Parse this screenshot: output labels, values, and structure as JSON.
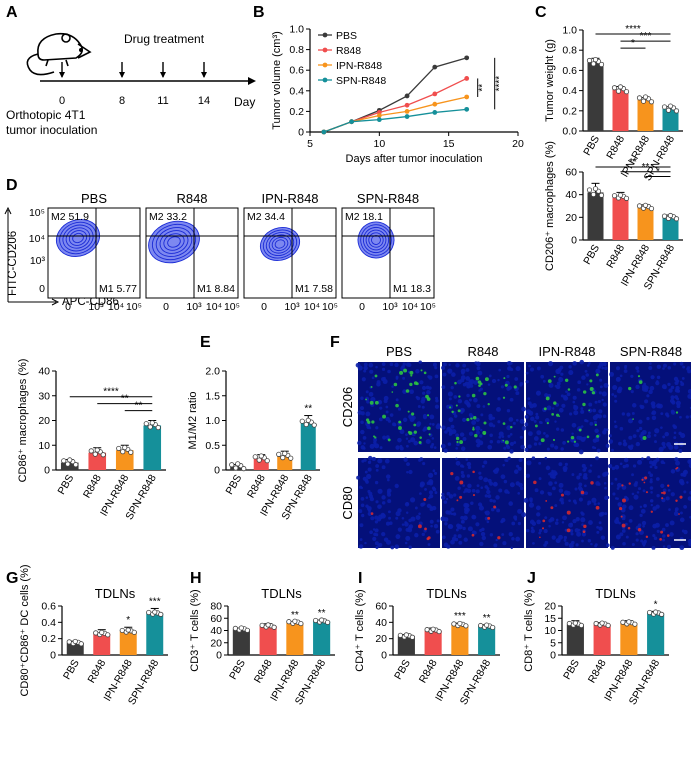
{
  "panel_letters": [
    "A",
    "B",
    "C",
    "D",
    "E",
    "F",
    "G",
    "H",
    "I",
    "J"
  ],
  "colors": {
    "PBS": "#3a3a3a",
    "R848": "#f04e4e",
    "IPN-R848": "#f7941d",
    "SPN-R848": "#15909a",
    "flow": "#1a2bd6",
    "cd206": "#2ecc40",
    "cd80": "#e02a2a",
    "nucleus": "#0b1fa8"
  },
  "timeline": {
    "drug_label": "Drug treatment",
    "axis_label": "Day",
    "ticks": [
      "0",
      "8",
      "11",
      "14"
    ],
    "inoculation_label_1": "Orthotopic 4T1",
    "inoculation_label_2": "tumor inoculation"
  },
  "flow": {
    "xlabel": "APC-CD86",
    "ylabel": "FITC-CD206",
    "x_ticks": [
      "0",
      "10³",
      "10⁴",
      "10⁵"
    ],
    "y_ticks": [
      "10⁵",
      "10⁴",
      "10³",
      "0"
    ],
    "plots": [
      {
        "title": "PBS",
        "m2": "M2 51.9",
        "m1": "M1 5.77"
      },
      {
        "title": "R848",
        "m2": "M2 33.2",
        "m1": "M1 8.84"
      },
      {
        "title": "IPN-R848",
        "m2": "M2 34.4",
        "m1": "M1 7.58"
      },
      {
        "title": "SPN-R848",
        "m2": "M2 18.1",
        "m1": "M1 18.3"
      }
    ]
  },
  "micro": {
    "cols": [
      "PBS",
      "R848",
      "IPN-R848",
      "SPN-R848"
    ],
    "rows": [
      "CD206",
      "CD80"
    ]
  },
  "chart_data": [
    {
      "id": "B",
      "type": "line",
      "title": "",
      "xlabel": "Days after tumor inoculation",
      "ylabel": "Tumor volume (cm³)",
      "xlim": [
        5,
        20
      ],
      "ylim": [
        0,
        1.0
      ],
      "xticks": [
        5,
        10,
        15,
        20
      ],
      "yticks": [
        0,
        0.2,
        0.4,
        0.6,
        0.8,
        1.0
      ],
      "x": [
        6,
        8,
        10,
        12,
        14,
        16.3
      ],
      "series": [
        {
          "name": "PBS",
          "values": [
            0.0,
            0.1,
            0.21,
            0.35,
            0.63,
            0.72
          ]
        },
        {
          "name": "R848",
          "values": [
            0.0,
            0.1,
            0.19,
            0.26,
            0.37,
            0.52
          ]
        },
        {
          "name": "IPN-R848",
          "values": [
            0.0,
            0.1,
            0.16,
            0.2,
            0.27,
            0.34
          ]
        },
        {
          "name": "SPN-R848",
          "values": [
            0.0,
            0.1,
            0.12,
            0.15,
            0.19,
            0.22
          ]
        }
      ],
      "annotations": [
        "**",
        "****"
      ]
    },
    {
      "id": "C",
      "type": "bar",
      "ylabel": "Tumor weight (g)",
      "categories": [
        "PBS",
        "R848",
        "IPN-R848",
        "SPN-R848"
      ],
      "values": [
        0.68,
        0.41,
        0.31,
        0.22
      ],
      "errors": [
        0.04,
        0.03,
        0.02,
        0.02
      ],
      "ylim": [
        0,
        1.0
      ],
      "yticks": [
        0.0,
        0.2,
        0.4,
        0.6,
        0.8,
        1.0
      ],
      "ytick_labels": [
        "0.0",
        "0.2",
        "0.4",
        "0.6",
        "0.8",
        "1.0"
      ],
      "brackets": [
        {
          "from": 0,
          "to": 3,
          "label": "****"
        },
        {
          "from": 1,
          "to": 3,
          "label": "***"
        },
        {
          "from": 1,
          "to": 2,
          "label": "*"
        }
      ]
    },
    {
      "id": "D2",
      "type": "bar",
      "ylabel": "CD206⁺ macrophages (%)",
      "categories": [
        "PBS",
        "R848",
        "IPN-R848",
        "SPN-R848"
      ],
      "values": [
        42,
        38,
        29,
        20
      ],
      "errors": [
        8,
        4,
        2,
        2
      ],
      "ylim": [
        0,
        60
      ],
      "yticks": [
        0,
        20,
        40,
        60
      ],
      "ytick_labels": [
        "0",
        "20",
        "40",
        "60"
      ],
      "brackets": [
        {
          "from": 0,
          "to": 3,
          "label": "**"
        },
        {
          "from": 1,
          "to": 3,
          "label": "**"
        },
        {
          "from": 2,
          "to": 3,
          "label": "*"
        }
      ]
    },
    {
      "id": "D3",
      "type": "bar",
      "ylabel": "CD86⁺ macrophages (%)",
      "categories": [
        "PBS",
        "R848",
        "IPN-R848",
        "SPN-R848"
      ],
      "values": [
        3,
        7,
        8,
        18
      ],
      "errors": [
        1.2,
        2,
        2,
        2
      ],
      "ylim": [
        0,
        40
      ],
      "yticks": [
        0,
        10,
        20,
        30,
        40
      ],
      "ytick_labels": [
        "0",
        "10",
        "20",
        "30",
        "40"
      ],
      "brackets": [
        {
          "from": 0,
          "to": 3,
          "label": "****"
        },
        {
          "from": 1,
          "to": 3,
          "label": "**"
        },
        {
          "from": 2,
          "to": 3,
          "label": "**"
        }
      ]
    },
    {
      "id": "E",
      "type": "bar",
      "ylabel": "M1/M2 ratio",
      "categories": [
        "PBS",
        "R848",
        "IPN-R848",
        "SPN-R848"
      ],
      "values": [
        0.07,
        0.23,
        0.28,
        0.95
      ],
      "errors": [
        0.04,
        0.08,
        0.1,
        0.15
      ],
      "ylim": [
        0,
        2.0
      ],
      "yticks": [
        0,
        0.5,
        1.0,
        1.5,
        2.0
      ],
      "ytick_labels": [
        "0",
        "0.5",
        "1.0",
        "1.5",
        "2.0"
      ],
      "stars": [
        "",
        "",
        "",
        "**"
      ]
    },
    {
      "id": "G",
      "type": "bar",
      "title": "TDLNs",
      "ylabel": "CD80⁺CD86⁺ DC cells (%)",
      "categories": [
        "PBS",
        "R848",
        "IPN-R848",
        "SPN-R848"
      ],
      "values": [
        0.15,
        0.26,
        0.29,
        0.51
      ],
      "errors": [
        0.02,
        0.05,
        0.05,
        0.06
      ],
      "ylim": [
        0,
        0.6
      ],
      "yticks": [
        0,
        0.2,
        0.4,
        0.6
      ],
      "ytick_labels": [
        "0",
        "0.2",
        "0.4",
        "0.6"
      ],
      "stars": [
        "",
        "",
        "*",
        "***"
      ]
    },
    {
      "id": "H",
      "type": "bar",
      "title": "TDLNs",
      "ylabel": "CD3⁺ T cells (%)",
      "categories": [
        "PBS",
        "R848",
        "IPN-R848",
        "SPN-R848"
      ],
      "values": [
        42,
        47,
        53,
        55
      ],
      "errors": [
        2,
        4,
        1,
        2
      ],
      "ylim": [
        0,
        80
      ],
      "yticks": [
        0,
        20,
        40,
        60,
        80
      ],
      "ytick_labels": [
        "0",
        "20",
        "40",
        "60",
        "80"
      ],
      "stars": [
        "",
        "",
        "**",
        "**"
      ]
    },
    {
      "id": "I",
      "type": "bar",
      "title": "TDLNs",
      "ylabel": "CD4⁺ T cells (%)",
      "categories": [
        "PBS",
        "R848",
        "IPN-R848",
        "SPN-R848"
      ],
      "values": [
        23,
        30,
        37,
        35
      ],
      "errors": [
        2,
        3,
        2,
        2
      ],
      "ylim": [
        0,
        60
      ],
      "yticks": [
        0,
        20,
        40,
        60
      ],
      "ytick_labels": [
        "0",
        "20",
        "40",
        "60"
      ],
      "stars": [
        "",
        "",
        "***",
        "**"
      ]
    },
    {
      "id": "J",
      "type": "bar",
      "title": "TDLNs",
      "ylabel": "CD8⁺ T cells (%)",
      "categories": [
        "PBS",
        "R848",
        "IPN-R848",
        "SPN-R848"
      ],
      "values": [
        12.5,
        12.5,
        13,
        17
      ],
      "errors": [
        1.5,
        0.7,
        1,
        0.8
      ],
      "ylim": [
        0,
        20
      ],
      "yticks": [
        0,
        5,
        10,
        15,
        20
      ],
      "ytick_labels": [
        "0",
        "5",
        "10",
        "15",
        "20"
      ],
      "stars": [
        "",
        "",
        "",
        "*"
      ]
    }
  ]
}
